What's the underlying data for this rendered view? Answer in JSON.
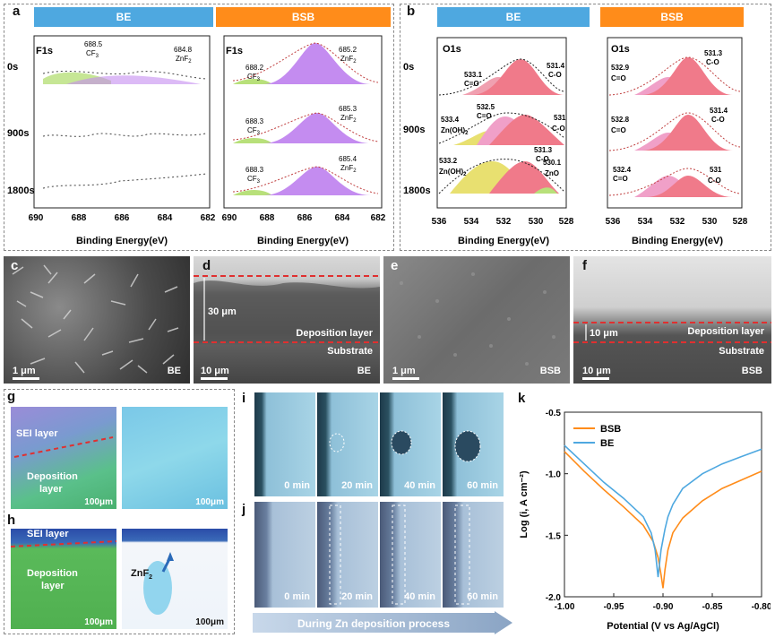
{
  "panel_labels": {
    "a": "a",
    "b": "b",
    "c": "c",
    "d": "d",
    "e": "e",
    "f": "f",
    "g": "g",
    "h": "h",
    "i": "i",
    "j": "j",
    "k": "k"
  },
  "colors": {
    "be_blue": "#4ea8e0",
    "bsb_orange": "#ff8c1a",
    "green_fill": "#b8e07a",
    "purple_fill": "#c48cf0",
    "pink_fill": "#f07a8a",
    "yellow_fill": "#e8e070"
  },
  "panel_a": {
    "header_be": "BE",
    "header_bsb": "BSB",
    "element_be": "F1s",
    "element_bsb": "F1s",
    "rows": [
      "0s",
      "900s",
      "1800s"
    ],
    "be_0s_cf3": "688.5\nCF3",
    "be_0s_znf2": "684.8\nZnF2",
    "bsb_0s_cf3": "688.2",
    "bsb_0s_znf2": "685.2",
    "bsb_900_cf3": "688.3",
    "bsb_900_znf2": "685.3",
    "bsb_1800_cf3": "688.3",
    "bsb_1800_znf2": "685.4",
    "cf3": "CF",
    "znf2": "ZnF",
    "ticks": [
      "690",
      "688",
      "686",
      "684",
      "682"
    ],
    "xlabel": "Binding Energy(eV)"
  },
  "panel_b": {
    "header_be": "BE",
    "header_bsb": "BSB",
    "element": "O1s",
    "rows": [
      "0s",
      "900s",
      "1800s"
    ],
    "be_0s": [
      {
        "v": "533.1",
        "n": "C=O"
      },
      {
        "v": "531.4",
        "n": "C-O"
      }
    ],
    "be_900": [
      {
        "v": "532.5",
        "n": "C=O"
      },
      {
        "v": "533.4",
        "n": "Zn(OH)"
      },
      {
        "v": "531",
        "n": "C-O"
      }
    ],
    "be_1800": [
      {
        "v": "531.3",
        "n": "C-O"
      },
      {
        "v": "533.2",
        "n": "Zn(OH)"
      },
      {
        "v": "530.1",
        "n": "ZnO"
      }
    ],
    "bsb_0s": [
      {
        "v": "532.9",
        "n": "C=O"
      },
      {
        "v": "531.3",
        "n": "C-O"
      }
    ],
    "bsb_900": [
      {
        "v": "532.8",
        "n": "C=O"
      },
      {
        "v": "531.4",
        "n": "C-O"
      }
    ],
    "bsb_1800": [
      {
        "v": "532.4",
        "n": "C=O"
      },
      {
        "v": "531",
        "n": "C-O"
      }
    ],
    "ticks": [
      "536",
      "534",
      "532",
      "530",
      "528"
    ],
    "xlabel": "Binding Energy(eV)"
  },
  "sem": {
    "c_scale": "1 μm",
    "c_tag": "BE",
    "d_scale": "10 μm",
    "d_tag": "BE",
    "d_thickness": "30 μm",
    "d_deposition": "Deposition layer",
    "d_substrate": "Substrate",
    "e_scale": "1 μm",
    "e_tag": "BSB",
    "f_scale": "10 μm",
    "f_tag": "BSB",
    "f_thickness": "10 μm",
    "f_deposition": "Deposition layer",
    "f_substrate": "Substrate"
  },
  "tomo": {
    "g_sei": "SEI layer",
    "g_dep1": "Deposition",
    "g_dep2": "layer",
    "g_scale1": "100μm",
    "g_scale2": "100μm",
    "h_sei": "SEI layer",
    "h_dep1": "Deposition",
    "h_dep2": "layer",
    "h_znf2": "ZnF",
    "h_scale1": "100μm",
    "h_scale2": "100μm"
  },
  "optical": {
    "times": [
      "0 min",
      "20 min",
      "40 min",
      "60 min"
    ],
    "arrow_text": "During Zn deposition process"
  },
  "chart_data": {
    "type": "line",
    "title": "",
    "xlabel": "Potential (V vs Ag/AgCl)",
    "ylabel": "Log (i, A cm⁻²)",
    "xlim": [
      -1.0,
      -0.8
    ],
    "ylim": [
      -2.0,
      -0.5
    ],
    "xticks": [
      "-1.00",
      "-0.95",
      "-0.90",
      "-0.85",
      "-0.80"
    ],
    "yticks": [
      "-0.5",
      "-1.0",
      "-1.5",
      "-2.0"
    ],
    "legend": "top-left",
    "series": [
      {
        "name": "BSB",
        "color": "#ff8c1a",
        "x": [
          -1.0,
          -0.98,
          -0.96,
          -0.94,
          -0.92,
          -0.91,
          -0.905,
          -0.902,
          -0.9,
          -0.898,
          -0.895,
          -0.89,
          -0.88,
          -0.86,
          -0.84,
          -0.82,
          -0.8
        ],
        "y": [
          -0.82,
          -0.98,
          -1.13,
          -1.27,
          -1.42,
          -1.55,
          -1.68,
          -1.82,
          -1.93,
          -1.78,
          -1.62,
          -1.48,
          -1.36,
          -1.22,
          -1.12,
          -1.05,
          -0.98
        ]
      },
      {
        "name": "BE",
        "color": "#4ea8e0",
        "x": [
          -1.0,
          -0.98,
          -0.96,
          -0.94,
          -0.92,
          -0.912,
          -0.908,
          -0.905,
          -0.902,
          -0.898,
          -0.895,
          -0.89,
          -0.88,
          -0.86,
          -0.84,
          -0.82,
          -0.8
        ],
        "y": [
          -0.77,
          -0.92,
          -1.07,
          -1.2,
          -1.35,
          -1.48,
          -1.62,
          -1.84,
          -1.62,
          -1.45,
          -1.35,
          -1.25,
          -1.12,
          -1.0,
          -0.92,
          -0.86,
          -0.8
        ]
      }
    ]
  }
}
